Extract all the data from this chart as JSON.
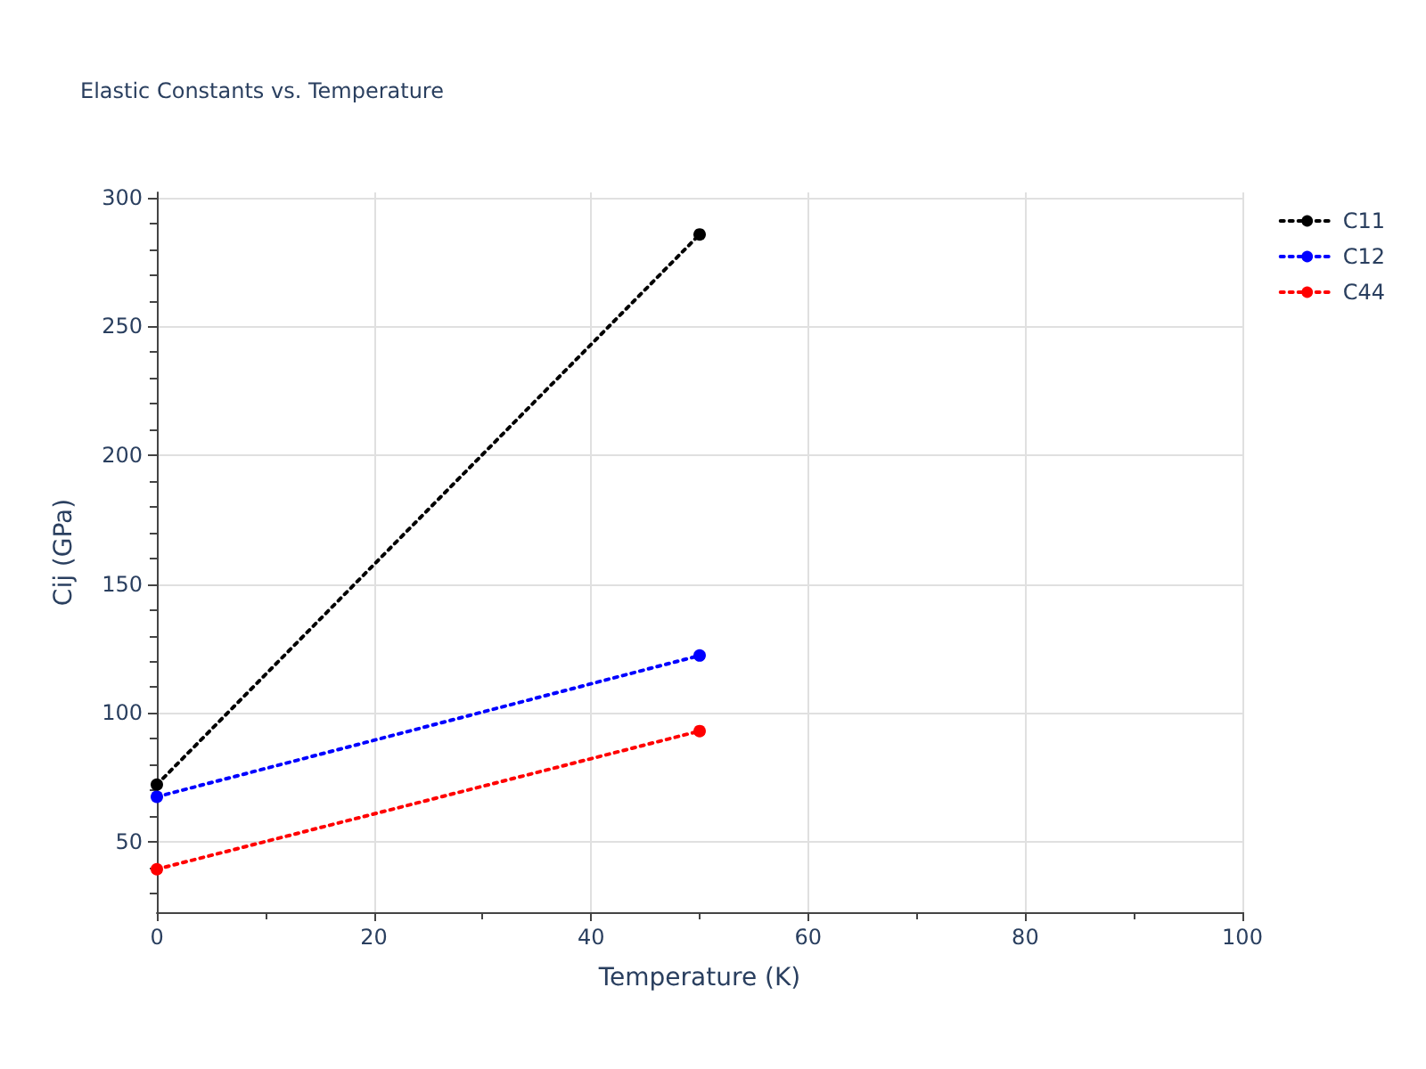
{
  "chart_data": {
    "type": "line",
    "title": "Elastic Constants vs. Temperature",
    "xlabel": "Temperature (K)",
    "ylabel": "Cij (GPa)",
    "x": [
      0,
      50
    ],
    "series": [
      {
        "name": "C11",
        "color": "#000000",
        "values": [
          72.2,
          285.7
        ]
      },
      {
        "name": "C12",
        "color": "#0000ff",
        "values": [
          67.5,
          122.3
        ]
      },
      {
        "name": "C44",
        "color": "#ff0000",
        "values": [
          39.4,
          93
        ]
      }
    ],
    "xlim": [
      0,
      100
    ],
    "xticks": [
      0,
      20,
      40,
      60,
      80,
      100
    ],
    "ylim": [
      22.7,
      302
    ],
    "yticks": [
      50,
      100,
      150,
      200,
      250,
      300
    ],
    "grid": true,
    "legend": "top right",
    "marker": "circle",
    "line_style": "dotted"
  }
}
